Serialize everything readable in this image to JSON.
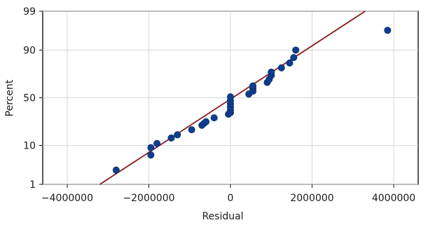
{
  "chart_data": {
    "type": "scatter",
    "title": "",
    "xlabel": "Residual",
    "ylabel": "Percent",
    "xlim": [
      -4600000,
      4600000
    ],
    "y_scale": "normal-probability",
    "ylim_percent": [
      1,
      99
    ],
    "x_ticks": [
      {
        "value": -4000000,
        "label": "−4000000"
      },
      {
        "value": -2000000,
        "label": "−2000000"
      },
      {
        "value": 0,
        "label": "0"
      },
      {
        "value": 2000000,
        "label": "2000000"
      },
      {
        "value": 4000000,
        "label": "4000000"
      }
    ],
    "y_ticks": [
      {
        "value": 99,
        "label": "99"
      },
      {
        "value": 90,
        "label": "90"
      },
      {
        "value": 50,
        "label": "50"
      },
      {
        "value": 10,
        "label": "10"
      },
      {
        "value": 1,
        "label": "1"
      }
    ],
    "grid": true,
    "marker_color": "#0e3e8e",
    "fit_line_color": "#8b1a1a",
    "fit_line": {
      "x": [
        -3200000,
        3300000
      ],
      "percent": [
        1,
        99
      ]
    },
    "points": [
      {
        "x": -2800000,
        "percent": 2.6
      },
      {
        "x": -1950000,
        "percent": 6.2
      },
      {
        "x": -1950000,
        "percent": 9.0
      },
      {
        "x": -1800000,
        "percent": 11.0
      },
      {
        "x": -1450000,
        "percent": 14.0
      },
      {
        "x": -1300000,
        "percent": 16.0
      },
      {
        "x": -950000,
        "percent": 19.5
      },
      {
        "x": -700000,
        "percent": 23.0
      },
      {
        "x": -650000,
        "percent": 24.5
      },
      {
        "x": -600000,
        "percent": 26.0
      },
      {
        "x": -400000,
        "percent": 29.5
      },
      {
        "x": -50000,
        "percent": 33.0
      },
      {
        "x": 0,
        "percent": 34.5
      },
      {
        "x": 0,
        "percent": 37.0
      },
      {
        "x": 0,
        "percent": 40.0
      },
      {
        "x": 0,
        "percent": 43.5
      },
      {
        "x": 0,
        "percent": 47.0
      },
      {
        "x": 0,
        "percent": 51.0
      },
      {
        "x": 450000,
        "percent": 54.0
      },
      {
        "x": 550000,
        "percent": 57.0
      },
      {
        "x": 550000,
        "percent": 60.0
      },
      {
        "x": 550000,
        "percent": 62.5
      },
      {
        "x": 900000,
        "percent": 66.0
      },
      {
        "x": 950000,
        "percent": 69.0
      },
      {
        "x": 1000000,
        "percent": 72.5
      },
      {
        "x": 1000000,
        "percent": 75.5
      },
      {
        "x": 1250000,
        "percent": 79.0
      },
      {
        "x": 1450000,
        "percent": 82.5
      },
      {
        "x": 1550000,
        "percent": 86.0
      },
      {
        "x": 1600000,
        "percent": 90.0
      },
      {
        "x": 3850000,
        "percent": 96.5
      }
    ]
  }
}
